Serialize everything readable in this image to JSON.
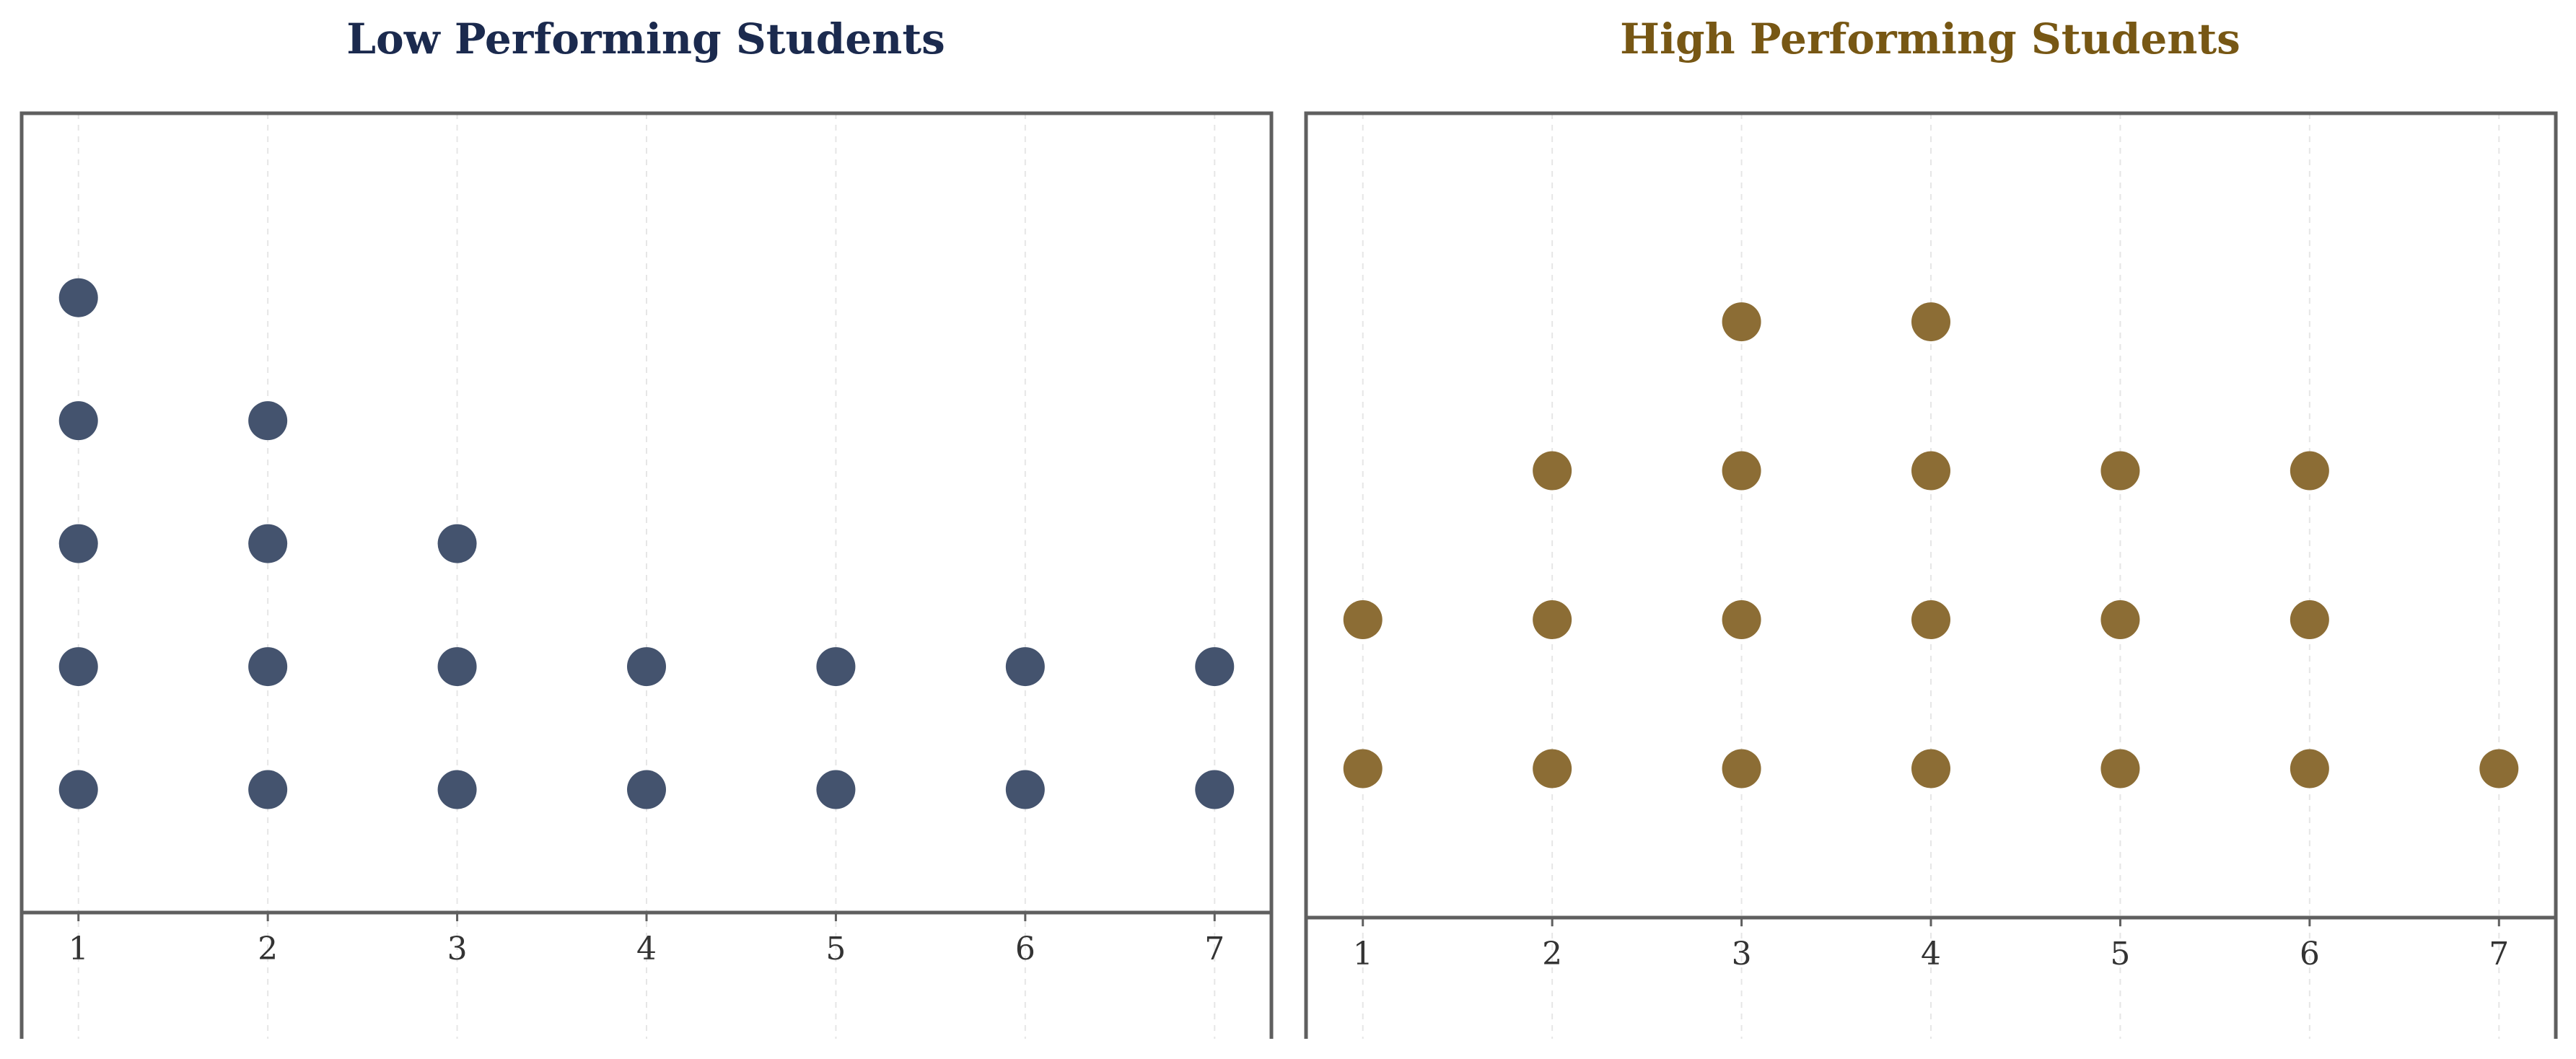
{
  "chart_data": [
    {
      "type": "scatter",
      "subtype": "dot-plot",
      "title": "Low Performing Students",
      "title_color": "#1b2a4e",
      "dot_color": "#44536e",
      "xlabel": "",
      "ylabel": "",
      "x_ticks": [
        "1",
        "2",
        "3",
        "4",
        "5",
        "6",
        "7"
      ],
      "xlim": [
        0.7,
        7.3
      ],
      "ylim": [
        0,
        6.5
      ],
      "grid": "vertical dashed",
      "counts": [
        {
          "x": 1,
          "count": 5
        },
        {
          "x": 2,
          "count": 4
        },
        {
          "x": 3,
          "count": 3
        },
        {
          "x": 4,
          "count": 2
        },
        {
          "x": 5,
          "count": 2
        },
        {
          "x": 6,
          "count": 2
        },
        {
          "x": 7,
          "count": 2
        }
      ]
    },
    {
      "type": "scatter",
      "subtype": "dot-plot",
      "title": "High Performing Students",
      "title_color": "#775714",
      "dot_color": "#8c6d35",
      "xlabel": "",
      "ylabel": "",
      "x_ticks": [
        "1",
        "2",
        "3",
        "4",
        "5",
        "6",
        "7"
      ],
      "xlim": [
        0.7,
        7.3
      ],
      "ylim": [
        0,
        5.4
      ],
      "grid": "vertical dashed",
      "counts": [
        {
          "x": 1,
          "count": 2
        },
        {
          "x": 2,
          "count": 3
        },
        {
          "x": 3,
          "count": 4
        },
        {
          "x": 4,
          "count": 4
        },
        {
          "x": 5,
          "count": 3
        },
        {
          "x": 6,
          "count": 3
        },
        {
          "x": 7,
          "count": 1
        }
      ]
    }
  ]
}
